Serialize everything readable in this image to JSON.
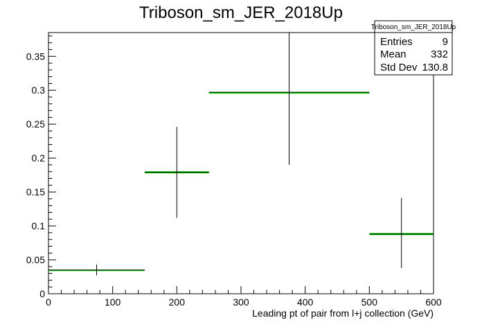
{
  "chart_data": {
    "type": "histogram",
    "title": "Triboson_sm_JER_2018Up",
    "xlabel": "Leading pt of pair from l+j collection (GeV)",
    "ylabel": "",
    "xlim": [
      0,
      600
    ],
    "ylim": [
      0,
      0.385
    ],
    "x_ticks": [
      0,
      100,
      200,
      300,
      400,
      500,
      600
    ],
    "y_ticks": [
      0,
      0.05,
      0.1,
      0.15,
      0.2,
      0.25,
      0.3,
      0.35
    ],
    "x_tick_labels": [
      "0",
      "100",
      "200",
      "300",
      "400",
      "500",
      "600"
    ],
    "y_tick_labels": [
      "0",
      "0.05",
      "0.1",
      "0.15",
      "0.2",
      "0.25",
      "0.3",
      "0.35"
    ],
    "grid": false,
    "bins": [
      {
        "x_low": 0,
        "x_high": 150,
        "x_center": 75,
        "y": 0.035,
        "err_low": 0.027,
        "err_high": 0.043,
        "band_low": 0.0345,
        "band_high": 0.0355
      },
      {
        "x_low": 150,
        "x_high": 250,
        "x_center": 200,
        "y": 0.179,
        "err_low": 0.112,
        "err_high": 0.246,
        "band_low": 0.1775,
        "band_high": 0.1805
      },
      {
        "x_low": 250,
        "x_high": 500,
        "x_center": 375,
        "y": 0.297,
        "err_low": 0.19,
        "err_high": 0.385,
        "band_low": 0.297,
        "band_high": 0.297
      },
      {
        "x_low": 500,
        "x_high": 600,
        "x_center": 550,
        "y": 0.088,
        "err_low": 0.038,
        "err_high": 0.141,
        "band_low": 0.0865,
        "band_high": 0.0895
      }
    ],
    "band_color": "#00cc00",
    "marker_color": "#000000",
    "stats_box": {
      "title": "Triboson_sm_JER_2018Up",
      "rows": [
        {
          "label": "Entries",
          "value": "9"
        },
        {
          "label": "Mean",
          "value": "332"
        },
        {
          "label": "Std Dev",
          "value": "130.8"
        }
      ]
    }
  }
}
